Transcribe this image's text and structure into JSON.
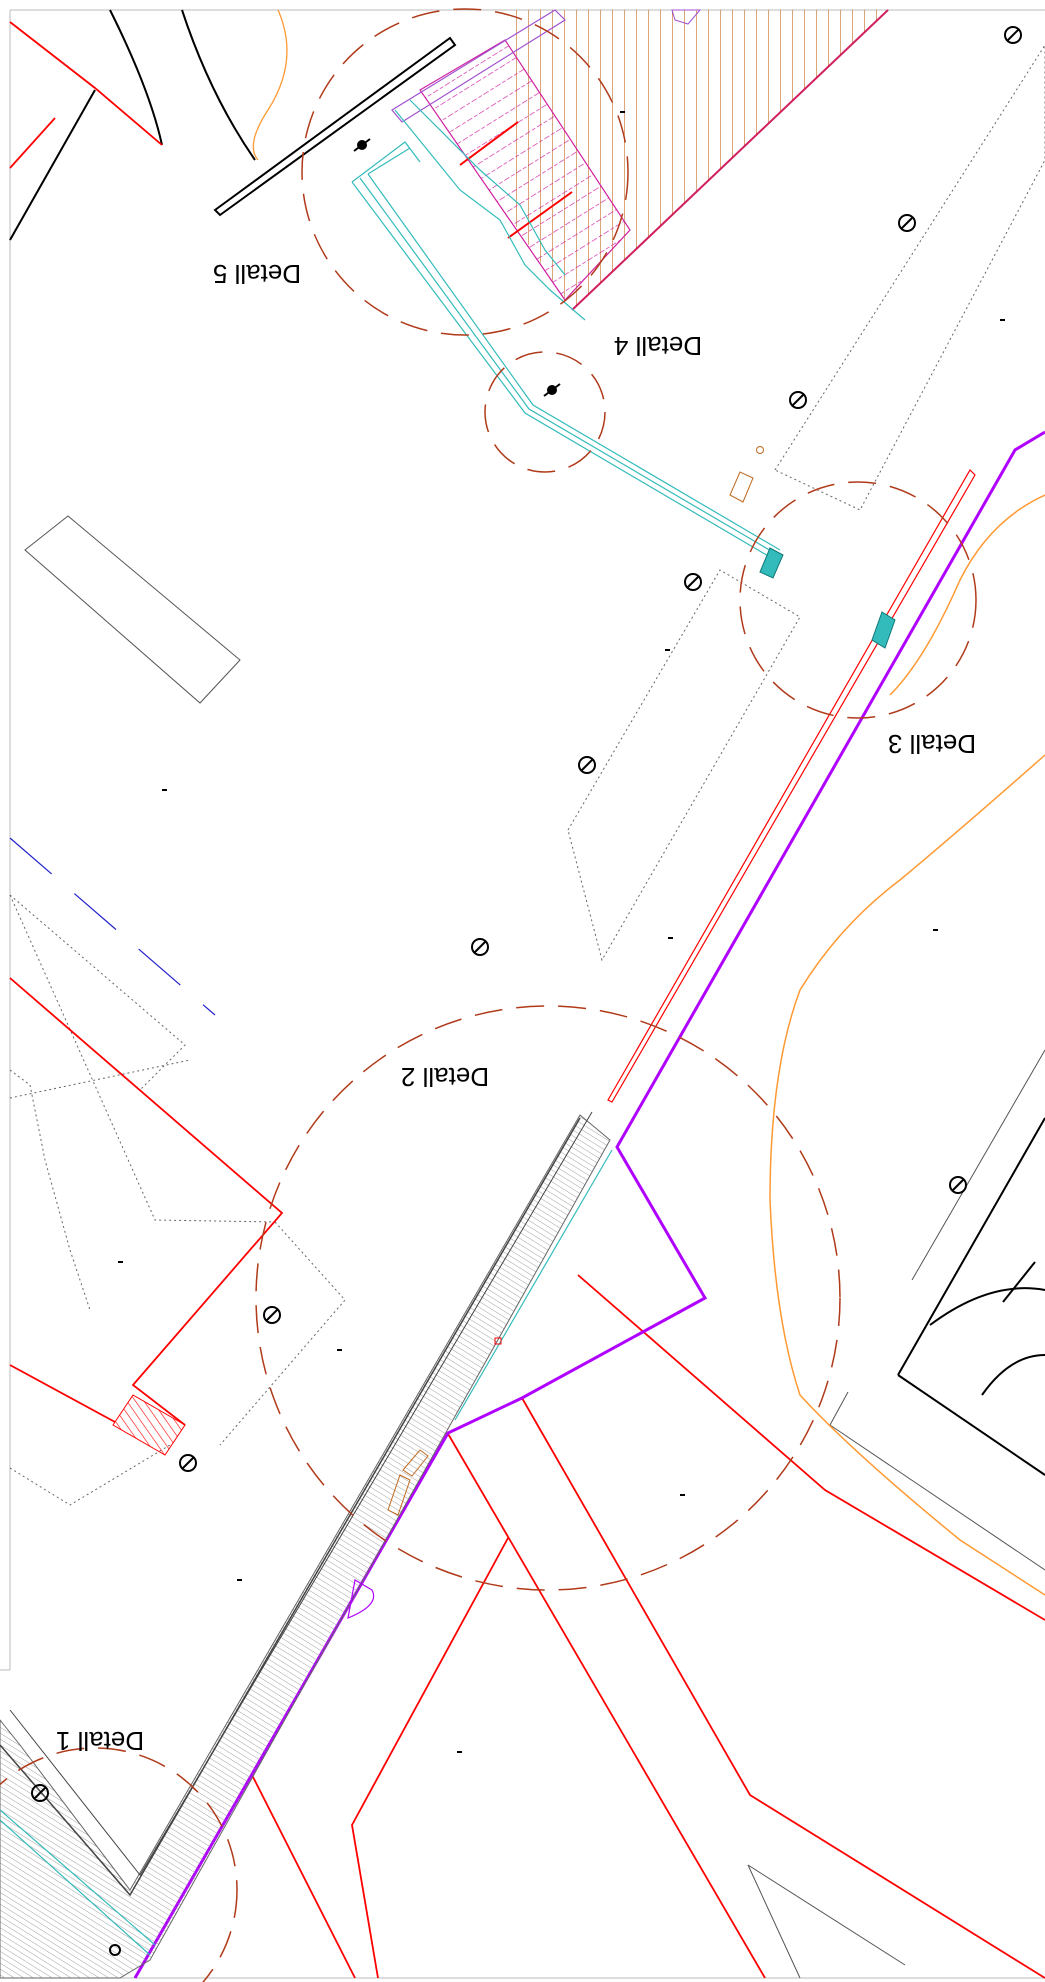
{
  "drawing": {
    "detail_labels": [
      "Detall 1",
      "Detall 2",
      "Detall 3",
      "Detall 4",
      "Detall 5"
    ],
    "colors": {
      "boundary": "#ff0000",
      "property_line": "#b000ff",
      "contour": "#ff9933",
      "detail_circle": "#b03a1a",
      "drain": "#33bbbb",
      "hatch_orange": "#c06a20",
      "hatch_magenta": "#d020a0",
      "blue_dash": "#2222cc",
      "grey": "#777777",
      "black": "#000000"
    }
  }
}
